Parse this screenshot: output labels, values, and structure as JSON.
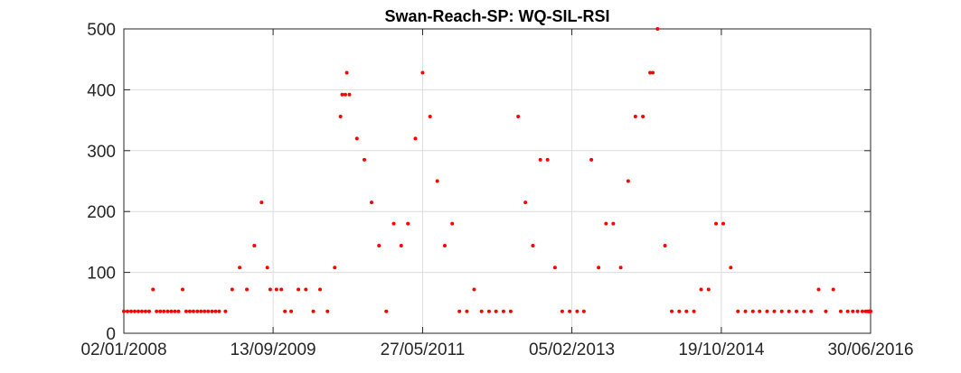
{
  "chart_data": {
    "type": "scatter",
    "title": "Swan-Reach-SP: WQ-SIL-RSI",
    "xlabel": "",
    "ylabel": "",
    "xlim": [
      "2008-01-02",
      "2016-06-30"
    ],
    "ylim": [
      0,
      500
    ],
    "grid": true,
    "marker_color": "#ff0000",
    "x_tick_labels": [
      "02/01/2008",
      "13/09/2009",
      "27/05/2011",
      "05/02/2013",
      "19/10/2014",
      "30/06/2016"
    ],
    "x_tick_dates": [
      "2008-01-02",
      "2009-09-13",
      "2011-05-27",
      "2013-02-05",
      "2014-10-19",
      "2016-06-30"
    ],
    "y_ticks": [
      0,
      100,
      200,
      300,
      400,
      500
    ],
    "y_tick_labels": [
      "0",
      "100",
      "200",
      "300",
      "400",
      "500"
    ],
    "series": [
      {
        "points": [
          [
            "2008-01-02",
            36
          ],
          [
            "2008-01-17",
            36
          ],
          [
            "2008-02-01",
            36
          ],
          [
            "2008-02-16",
            36
          ],
          [
            "2008-03-02",
            36
          ],
          [
            "2008-03-17",
            36
          ],
          [
            "2008-04-01",
            36
          ],
          [
            "2008-04-16",
            36
          ],
          [
            "2008-05-02",
            72
          ],
          [
            "2008-05-17",
            36
          ],
          [
            "2008-06-01",
            36
          ],
          [
            "2008-06-16",
            36
          ],
          [
            "2008-07-02",
            36
          ],
          [
            "2008-07-17",
            36
          ],
          [
            "2008-08-01",
            36
          ],
          [
            "2008-08-16",
            36
          ],
          [
            "2008-09-02",
            72
          ],
          [
            "2008-09-17",
            36
          ],
          [
            "2008-10-02",
            36
          ],
          [
            "2008-10-17",
            36
          ],
          [
            "2008-11-02",
            36
          ],
          [
            "2008-11-17",
            36
          ],
          [
            "2008-12-02",
            36
          ],
          [
            "2008-12-17",
            36
          ],
          [
            "2009-01-02",
            36
          ],
          [
            "2009-01-17",
            36
          ],
          [
            "2009-02-01",
            36
          ],
          [
            "2009-02-27",
            36
          ],
          [
            "2009-03-27",
            72
          ],
          [
            "2009-04-27",
            108
          ],
          [
            "2009-05-27",
            72
          ],
          [
            "2009-06-27",
            144
          ],
          [
            "2009-07-27",
            215
          ],
          [
            "2009-08-20",
            108
          ],
          [
            "2009-09-01",
            72
          ],
          [
            "2009-09-27",
            72
          ],
          [
            "2009-10-17",
            72
          ],
          [
            "2009-11-01",
            36
          ],
          [
            "2009-11-27",
            36
          ],
          [
            "2009-12-27",
            72
          ],
          [
            "2010-01-27",
            72
          ],
          [
            "2010-02-27",
            36
          ],
          [
            "2010-03-27",
            72
          ],
          [
            "2010-04-27",
            36
          ],
          [
            "2010-05-27",
            108
          ],
          [
            "2010-06-20",
            356
          ],
          [
            "2010-06-27",
            392
          ],
          [
            "2010-07-10",
            392
          ],
          [
            "2010-07-16",
            428
          ],
          [
            "2010-07-27",
            392
          ],
          [
            "2010-08-27",
            320
          ],
          [
            "2010-09-27",
            285
          ],
          [
            "2010-10-27",
            215
          ],
          [
            "2010-11-27",
            144
          ],
          [
            "2010-12-27",
            36
          ],
          [
            "2011-01-27",
            180
          ],
          [
            "2011-02-27",
            144
          ],
          [
            "2011-03-27",
            180
          ],
          [
            "2011-04-27",
            320
          ],
          [
            "2011-05-27",
            428
          ],
          [
            "2011-06-27",
            356
          ],
          [
            "2011-07-27",
            250
          ],
          [
            "2011-08-27",
            144
          ],
          [
            "2011-09-27",
            180
          ],
          [
            "2011-10-27",
            36
          ],
          [
            "2011-11-27",
            36
          ],
          [
            "2011-12-27",
            72
          ],
          [
            "2012-01-27",
            36
          ],
          [
            "2012-02-27",
            36
          ],
          [
            "2012-03-27",
            36
          ],
          [
            "2012-04-27",
            36
          ],
          [
            "2012-05-27",
            36
          ],
          [
            "2012-06-27",
            356
          ],
          [
            "2012-07-27",
            215
          ],
          [
            "2012-08-27",
            144
          ],
          [
            "2012-09-27",
            285
          ],
          [
            "2012-10-27",
            285
          ],
          [
            "2012-11-27",
            108
          ],
          [
            "2012-12-27",
            36
          ],
          [
            "2013-01-27",
            36
          ],
          [
            "2013-02-27",
            36
          ],
          [
            "2013-03-27",
            36
          ],
          [
            "2013-04-27",
            285
          ],
          [
            "2013-05-27",
            108
          ],
          [
            "2013-06-27",
            180
          ],
          [
            "2013-07-27",
            180
          ],
          [
            "2013-08-27",
            108
          ],
          [
            "2013-09-27",
            250
          ],
          [
            "2013-10-27",
            356
          ],
          [
            "2013-11-27",
            356
          ],
          [
            "2013-12-27",
            428
          ],
          [
            "2014-01-07",
            428
          ],
          [
            "2014-01-27",
            500
          ],
          [
            "2014-02-27",
            144
          ],
          [
            "2014-03-27",
            36
          ],
          [
            "2014-04-27",
            36
          ],
          [
            "2014-05-27",
            36
          ],
          [
            "2014-06-27",
            36
          ],
          [
            "2014-07-27",
            72
          ],
          [
            "2014-08-27",
            72
          ],
          [
            "2014-09-27",
            180
          ],
          [
            "2014-10-27",
            180
          ],
          [
            "2014-11-27",
            108
          ],
          [
            "2014-12-27",
            36
          ],
          [
            "2015-01-27",
            36
          ],
          [
            "2015-02-27",
            36
          ],
          [
            "2015-03-27",
            36
          ],
          [
            "2015-04-27",
            36
          ],
          [
            "2015-05-27",
            36
          ],
          [
            "2015-06-27",
            36
          ],
          [
            "2015-07-27",
            36
          ],
          [
            "2015-08-27",
            36
          ],
          [
            "2015-09-27",
            36
          ],
          [
            "2015-10-27",
            36
          ],
          [
            "2015-11-27",
            72
          ],
          [
            "2015-12-27",
            36
          ],
          [
            "2016-01-27",
            72
          ],
          [
            "2016-02-27",
            36
          ],
          [
            "2016-03-27",
            36
          ],
          [
            "2016-04-17",
            36
          ],
          [
            "2016-05-07",
            36
          ],
          [
            "2016-05-27",
            36
          ],
          [
            "2016-06-10",
            36
          ],
          [
            "2016-06-17",
            36
          ],
          [
            "2016-06-22",
            36
          ],
          [
            "2016-06-25",
            36
          ],
          [
            "2016-06-27",
            36
          ],
          [
            "2016-06-28",
            36
          ],
          [
            "2016-06-29",
            36
          ],
          [
            "2016-06-30",
            36
          ]
        ]
      }
    ]
  }
}
